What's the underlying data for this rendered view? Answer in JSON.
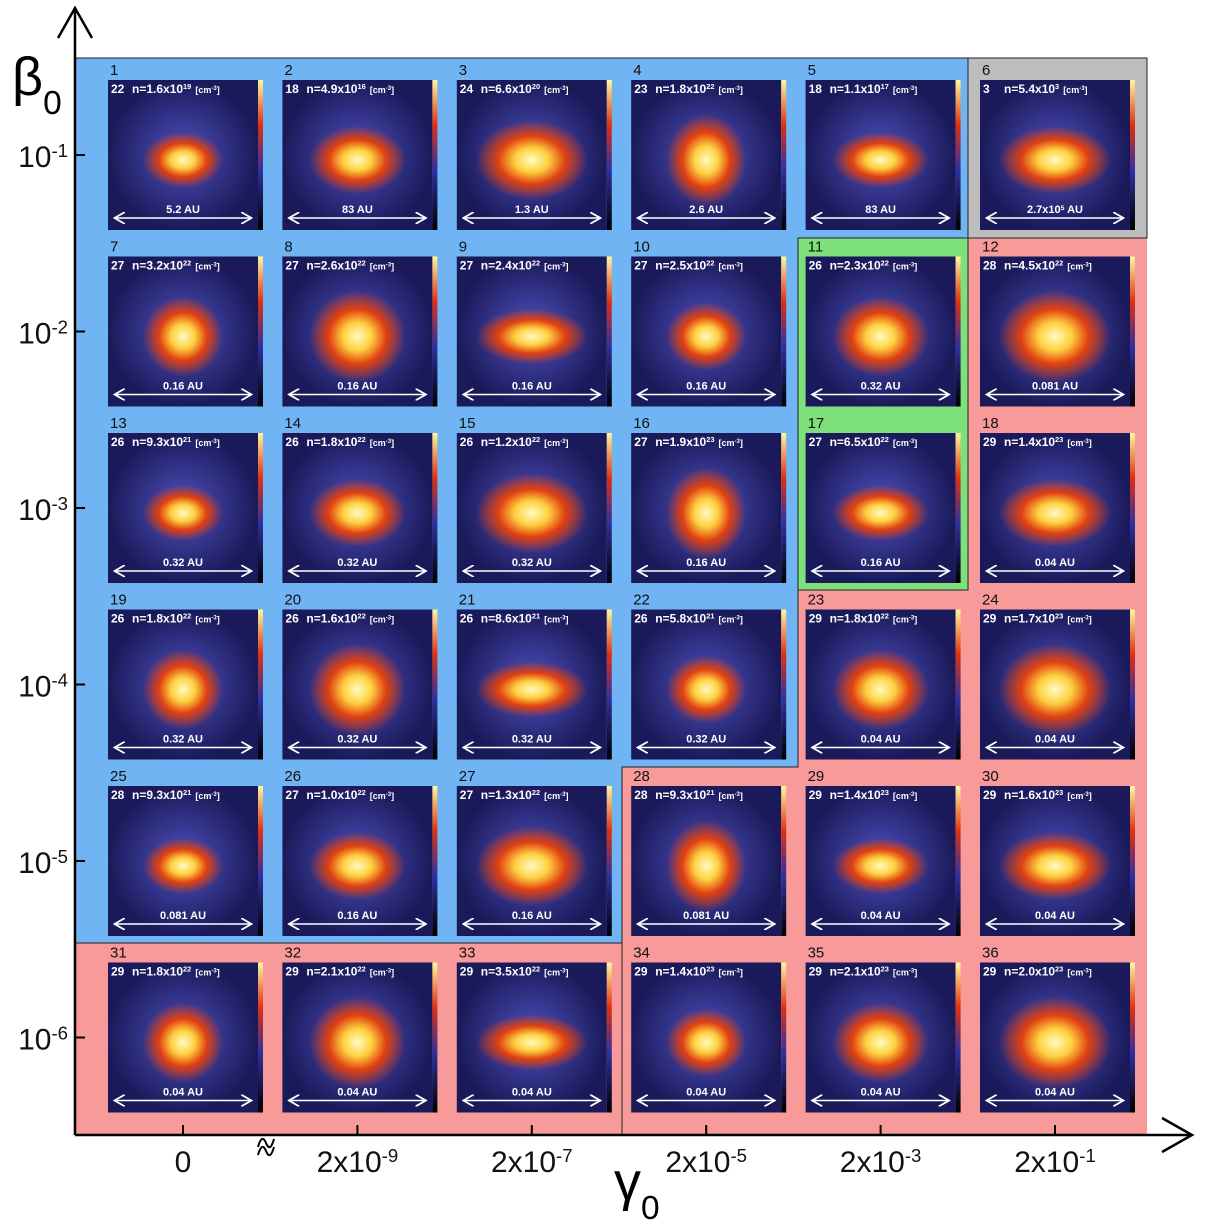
{
  "axes": {
    "y_title": [
      "β",
      "0"
    ],
    "x_title": [
      "γ",
      "0"
    ],
    "y_ticks": [
      [
        "10",
        "-1"
      ],
      [
        "10",
        "-2"
      ],
      [
        "10",
        "-3"
      ],
      [
        "10",
        "-4"
      ],
      [
        "10",
        "-5"
      ],
      [
        "10",
        "-6"
      ]
    ],
    "x_ticks": [
      [
        "0"
      ],
      [
        "2x10",
        "-9"
      ],
      [
        "2x10",
        "-7"
      ],
      [
        "2x10",
        "-5"
      ],
      [
        "2x10",
        "-3"
      ],
      [
        "2x10",
        "-1"
      ]
    ]
  },
  "unit": [
    "[cm",
    "-3",
    "]"
  ],
  "panels": [
    {
      "number": "1",
      "level": "22",
      "density": [
        "n=1.6x10",
        "19"
      ],
      "scale": [
        "5.2 AU"
      ]
    },
    {
      "number": "2",
      "level": "18",
      "density": [
        "n=4.9x10",
        "16"
      ],
      "scale": [
        "83 AU"
      ]
    },
    {
      "number": "3",
      "level": "24",
      "density": [
        "n=6.6x10",
        "20"
      ],
      "scale": [
        "1.3 AU"
      ]
    },
    {
      "number": "4",
      "level": "23",
      "density": [
        "n=1.8x10",
        "22"
      ],
      "scale": [
        "2.6 AU"
      ]
    },
    {
      "number": "5",
      "level": "18",
      "density": [
        "n=1.1x10",
        "17"
      ],
      "scale": [
        "83 AU"
      ]
    },
    {
      "number": "6",
      "level": "3",
      "density": [
        "n=5.4x10",
        "3"
      ],
      "scale": [
        "2.7x10",
        "5",
        " AU"
      ]
    },
    {
      "number": "7",
      "level": "27",
      "density": [
        "n=3.2x10",
        "22"
      ],
      "scale": [
        "0.16 AU"
      ]
    },
    {
      "number": "8",
      "level": "27",
      "density": [
        "n=2.6x10",
        "22"
      ],
      "scale": [
        "0.16 AU"
      ]
    },
    {
      "number": "9",
      "level": "27",
      "density": [
        "n=2.4x10",
        "22"
      ],
      "scale": [
        "0.16 AU"
      ]
    },
    {
      "number": "10",
      "level": "27",
      "density": [
        "n=2.5x10",
        "22"
      ],
      "scale": [
        "0.16 AU"
      ]
    },
    {
      "number": "11",
      "level": "26",
      "density": [
        "n=2.3x10",
        "22"
      ],
      "scale": [
        "0.32 AU"
      ]
    },
    {
      "number": "12",
      "level": "28",
      "density": [
        "n=4.5x10",
        "22"
      ],
      "scale": [
        "0.081 AU"
      ]
    },
    {
      "number": "13",
      "level": "26",
      "density": [
        "n=9.3x10",
        "21"
      ],
      "scale": [
        "0.32 AU"
      ]
    },
    {
      "number": "14",
      "level": "26",
      "density": [
        "n=1.8x10",
        "22"
      ],
      "scale": [
        "0.32 AU"
      ]
    },
    {
      "number": "15",
      "level": "26",
      "density": [
        "n=1.2x10",
        "22"
      ],
      "scale": [
        "0.32 AU"
      ]
    },
    {
      "number": "16",
      "level": "27",
      "density": [
        "n=1.9x10",
        "23"
      ],
      "scale": [
        "0.16 AU"
      ]
    },
    {
      "number": "17",
      "level": "27",
      "density": [
        "n=6.5x10",
        "22"
      ],
      "scale": [
        "0.16 AU"
      ]
    },
    {
      "number": "18",
      "level": "29",
      "density": [
        "n=1.4x10",
        "23"
      ],
      "scale": [
        "0.04 AU"
      ]
    },
    {
      "number": "19",
      "level": "26",
      "density": [
        "n=1.8x10",
        "22"
      ],
      "scale": [
        "0.32 AU"
      ]
    },
    {
      "number": "20",
      "level": "26",
      "density": [
        "n=1.6x10",
        "22"
      ],
      "scale": [
        "0.32 AU"
      ]
    },
    {
      "number": "21",
      "level": "26",
      "density": [
        "n=8.6x10",
        "21"
      ],
      "scale": [
        "0.32 AU"
      ]
    },
    {
      "number": "22",
      "level": "26",
      "density": [
        "n=5.8x10",
        "21"
      ],
      "scale": [
        "0.32 AU"
      ]
    },
    {
      "number": "23",
      "level": "29",
      "density": [
        "n=1.8x10",
        "22"
      ],
      "scale": [
        "0.04 AU"
      ]
    },
    {
      "number": "24",
      "level": "29",
      "density": [
        "n=1.7x10",
        "23"
      ],
      "scale": [
        "0.04 AU"
      ]
    },
    {
      "number": "25",
      "level": "28",
      "density": [
        "n=9.3x10",
        "21"
      ],
      "scale": [
        "0.081 AU"
      ]
    },
    {
      "number": "26",
      "level": "27",
      "density": [
        "n=1.0x10",
        "22"
      ],
      "scale": [
        "0.16 AU"
      ]
    },
    {
      "number": "27",
      "level": "27",
      "density": [
        "n=1.3x10",
        "22"
      ],
      "scale": [
        "0.16 AU"
      ]
    },
    {
      "number": "28",
      "level": "28",
      "density": [
        "n=9.3x10",
        "21"
      ],
      "scale": [
        "0.081 AU"
      ]
    },
    {
      "number": "29",
      "level": "29",
      "density": [
        "n=1.4x10",
        "23"
      ],
      "scale": [
        "0.04 AU"
      ]
    },
    {
      "number": "30",
      "level": "29",
      "density": [
        "n=1.6x10",
        "23"
      ],
      "scale": [
        "0.04 AU"
      ]
    },
    {
      "number": "31",
      "level": "29",
      "density": [
        "n=1.8x10",
        "22"
      ],
      "scale": [
        "0.04 AU"
      ]
    },
    {
      "number": "32",
      "level": "29",
      "density": [
        "n=2.1x10",
        "22"
      ],
      "scale": [
        "0.04 AU"
      ]
    },
    {
      "number": "33",
      "level": "29",
      "density": [
        "n=3.5x10",
        "22"
      ],
      "scale": [
        "0.04 AU"
      ]
    },
    {
      "number": "34",
      "level": "29",
      "density": [
        "n=1.4x10",
        "23"
      ],
      "scale": [
        "0.04 AU"
      ]
    },
    {
      "number": "35",
      "level": "29",
      "density": [
        "n=2.1x10",
        "23"
      ],
      "scale": [
        "0.04 AU"
      ]
    },
    {
      "number": "36",
      "level": "29",
      "density": [
        "n=2.0x10",
        "23"
      ],
      "scale": [
        "0.04 AU"
      ]
    }
  ]
}
